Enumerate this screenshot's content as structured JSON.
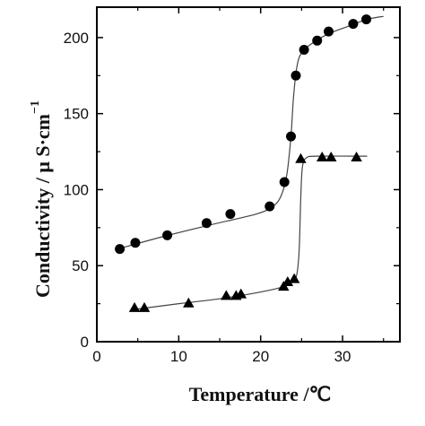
{
  "chart_data": {
    "type": "scatter",
    "title": "",
    "xlabel": "Temperature /℃",
    "ylabel": "Conductivity / μ S·cm",
    "ylabel_superscript": "−1",
    "xlim": [
      0,
      37
    ],
    "ylim": [
      0,
      220
    ],
    "xticks": [
      0,
      10,
      20,
      30
    ],
    "yticks": [
      0,
      50,
      100,
      150,
      200
    ],
    "grid": false,
    "legend": "none",
    "series": [
      {
        "marker": "circle",
        "color": "#000000",
        "points": [
          {
            "x": 2.8,
            "y": 61
          },
          {
            "x": 4.7,
            "y": 65
          },
          {
            "x": 8.6,
            "y": 70
          },
          {
            "x": 13.4,
            "y": 78
          },
          {
            "x": 16.3,
            "y": 84
          },
          {
            "x": 21.1,
            "y": 89
          },
          {
            "x": 22.9,
            "y": 105
          },
          {
            "x": 23.7,
            "y": 135
          },
          {
            "x": 24.3,
            "y": 175
          },
          {
            "x": 25.3,
            "y": 192
          },
          {
            "x": 26.9,
            "y": 198
          },
          {
            "x": 28.3,
            "y": 204
          },
          {
            "x": 31.3,
            "y": 209
          },
          {
            "x": 32.9,
            "y": 212
          }
        ],
        "fit": [
          {
            "x": 2.6,
            "y": 61
          },
          {
            "x": 8,
            "y": 69
          },
          {
            "x": 14,
            "y": 77
          },
          {
            "x": 19.5,
            "y": 84
          },
          {
            "x": 21.5,
            "y": 89
          },
          {
            "x": 22.5,
            "y": 96
          },
          {
            "x": 23.2,
            "y": 110
          },
          {
            "x": 23.7,
            "y": 135
          },
          {
            "x": 24.0,
            "y": 160
          },
          {
            "x": 24.4,
            "y": 180
          },
          {
            "x": 25.0,
            "y": 190
          },
          {
            "x": 26.5,
            "y": 197
          },
          {
            "x": 28.5,
            "y": 203
          },
          {
            "x": 31,
            "y": 208
          },
          {
            "x": 33,
            "y": 212
          },
          {
            "x": 35,
            "y": 214
          }
        ]
      },
      {
        "marker": "triangle",
        "color": "#000000",
        "points": [
          {
            "x": 4.6,
            "y": 22
          },
          {
            "x": 5.8,
            "y": 22
          },
          {
            "x": 11.2,
            "y": 25
          },
          {
            "x": 15.8,
            "y": 30
          },
          {
            "x": 17.0,
            "y": 30
          },
          {
            "x": 17.6,
            "y": 31
          },
          {
            "x": 22.8,
            "y": 36
          },
          {
            "x": 23.3,
            "y": 39
          },
          {
            "x": 24.1,
            "y": 41
          },
          {
            "x": 24.9,
            "y": 120
          },
          {
            "x": 27.5,
            "y": 121
          },
          {
            "x": 28.6,
            "y": 121
          },
          {
            "x": 31.7,
            "y": 121
          }
        ],
        "fit": [
          {
            "x": 4.3,
            "y": 21
          },
          {
            "x": 10,
            "y": 25
          },
          {
            "x": 16,
            "y": 29
          },
          {
            "x": 22,
            "y": 35
          },
          {
            "x": 23.8,
            "y": 39
          },
          {
            "x": 24.4,
            "y": 44
          },
          {
            "x": 24.7,
            "y": 60
          },
          {
            "x": 24.9,
            "y": 95
          },
          {
            "x": 25.1,
            "y": 115
          },
          {
            "x": 25.6,
            "y": 121
          },
          {
            "x": 27,
            "y": 122
          },
          {
            "x": 33,
            "y": 122
          }
        ]
      }
    ]
  }
}
